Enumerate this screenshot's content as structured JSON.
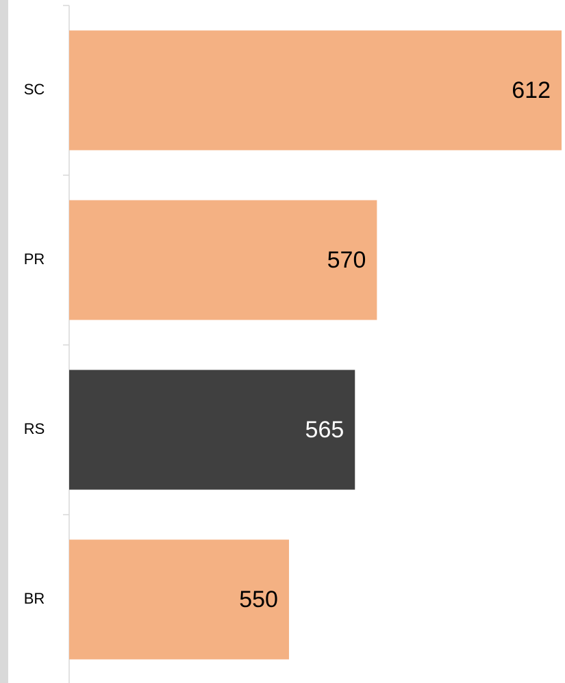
{
  "chart_data": {
    "type": "hbar",
    "categories": [
      "SC",
      "PR",
      "RS",
      "BR"
    ],
    "values": [
      612,
      570,
      565,
      550
    ],
    "colors": [
      "#f4b183",
      "#f4b183",
      "#404040",
      "#f4b183"
    ],
    "xlim": [
      500,
      612
    ]
  }
}
